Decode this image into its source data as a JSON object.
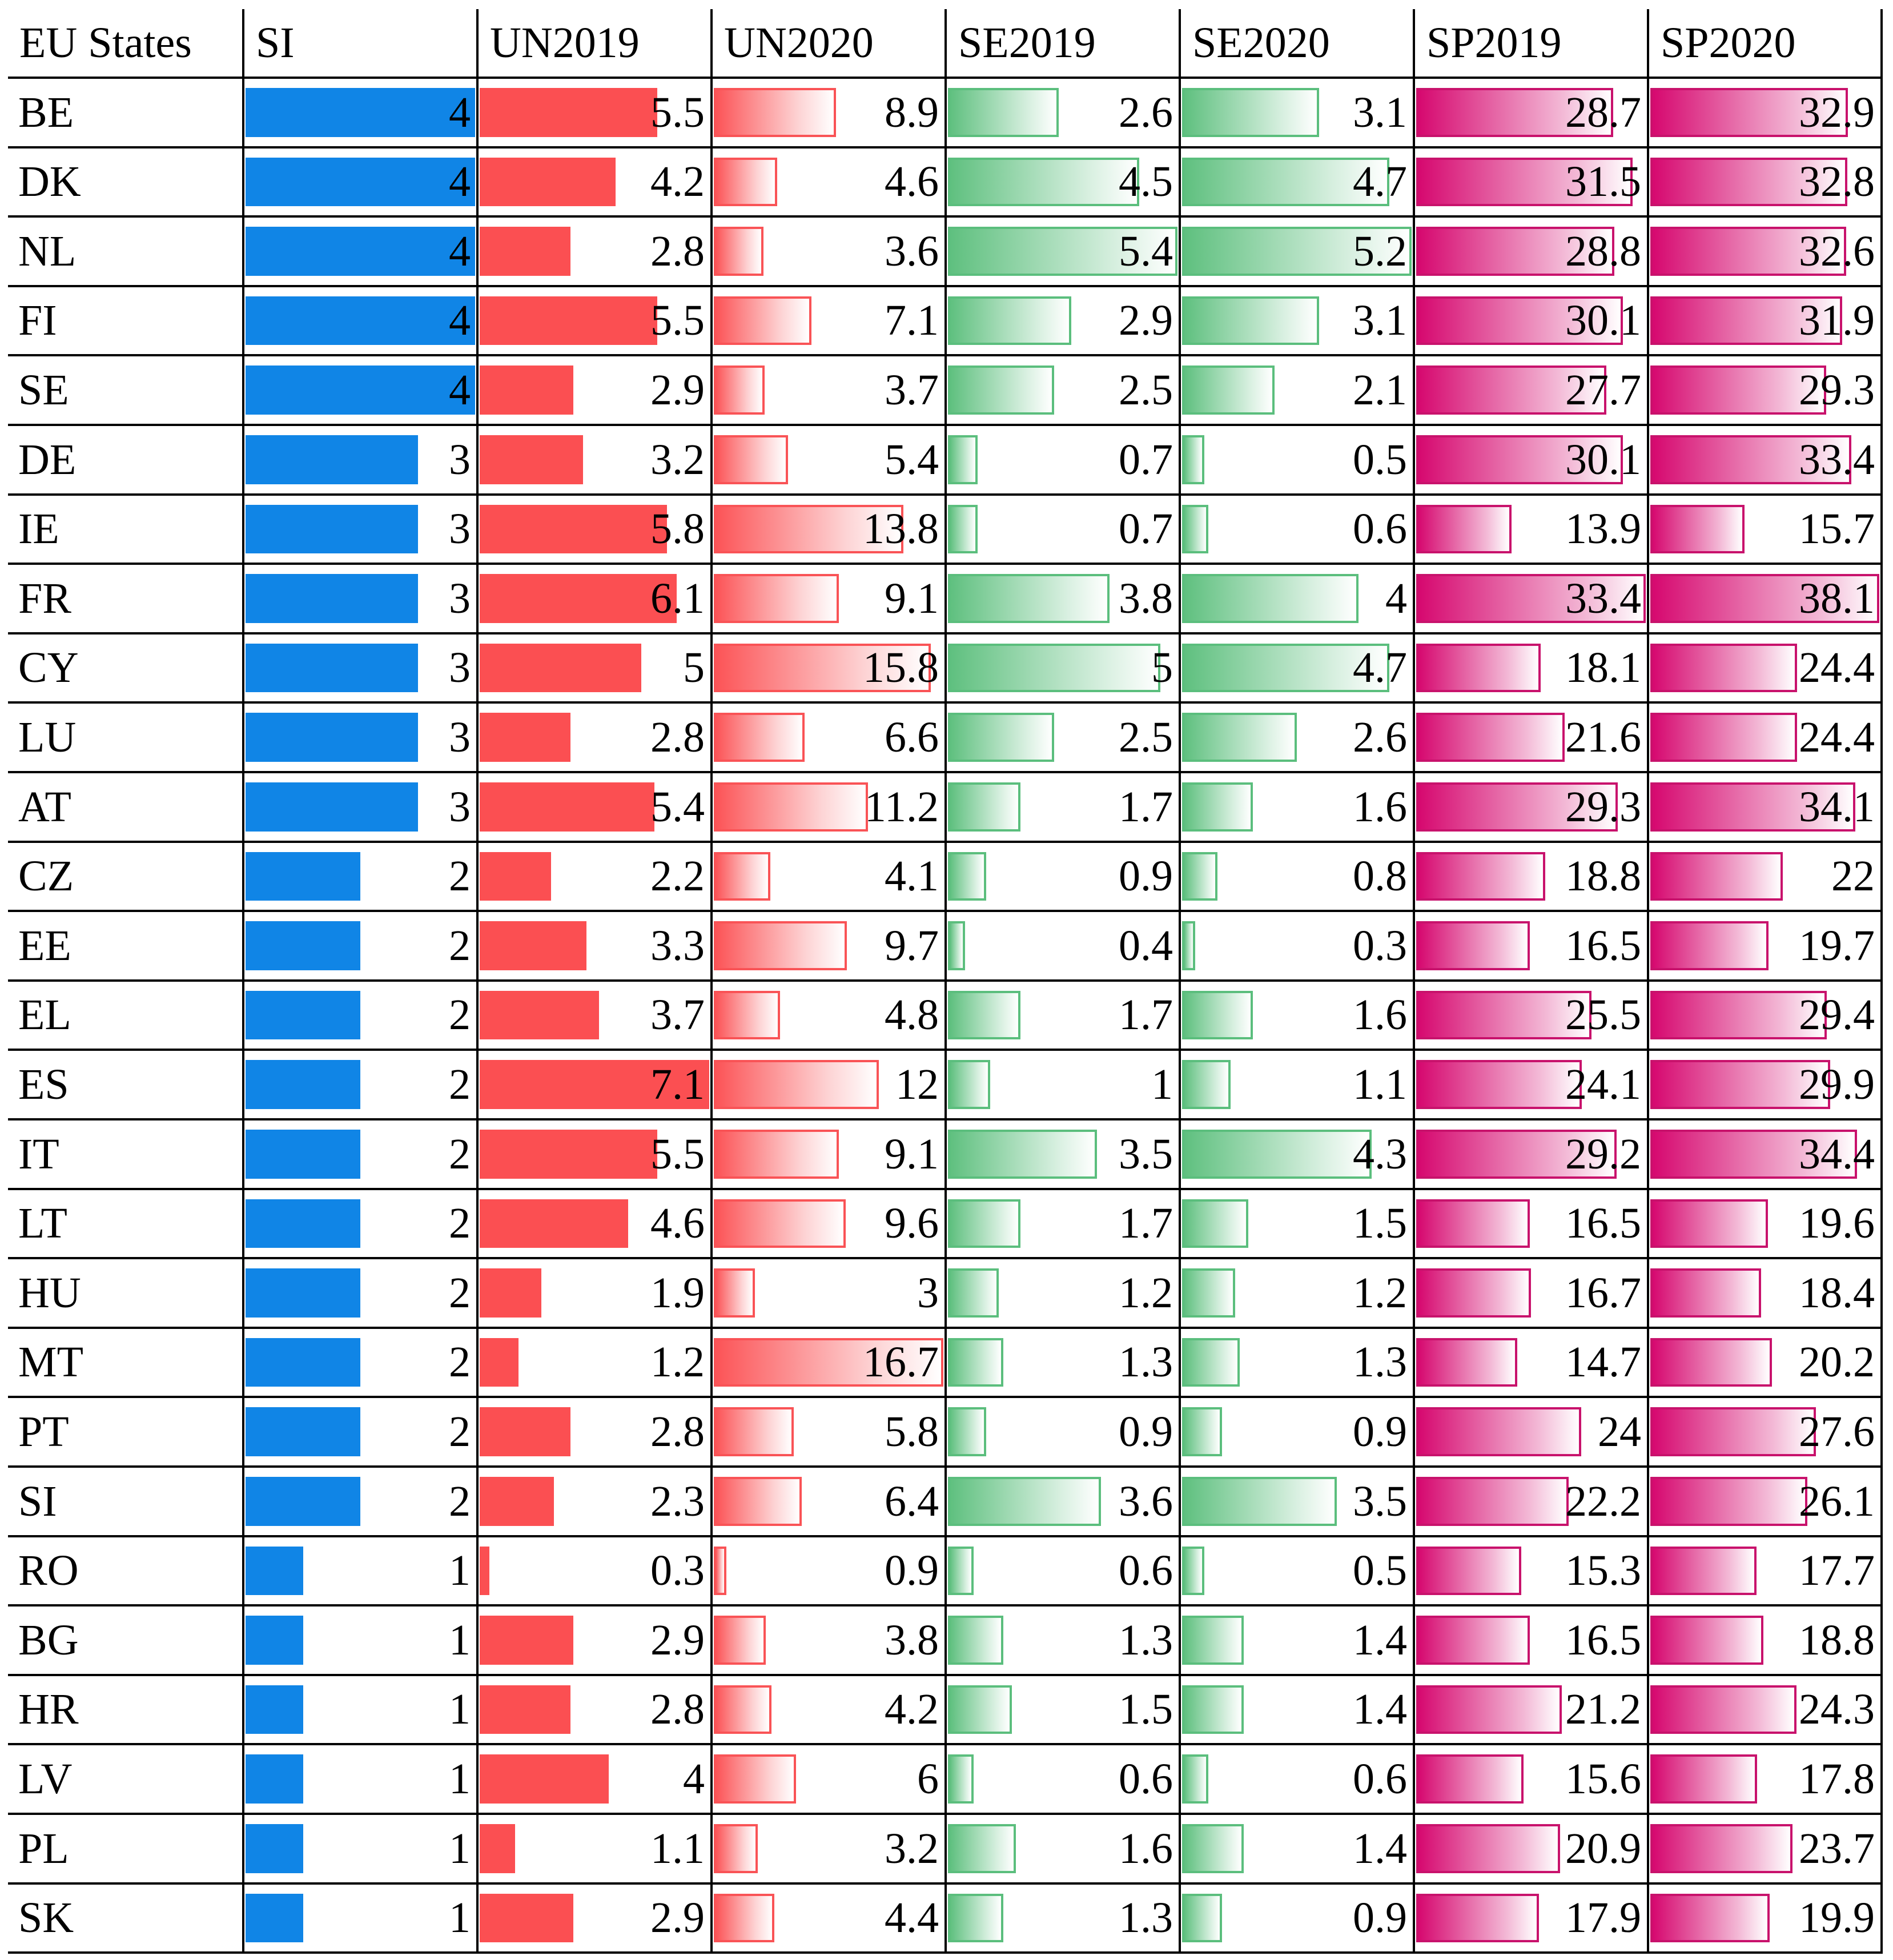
{
  "chart_data": {
    "type": "table",
    "columns": [
      "EU States",
      "SI",
      "UN2019",
      "UN2020",
      "SE2019",
      "SE2020",
      "SP2019",
      "SP2020"
    ],
    "rows": [
      [
        "BE",
        "4",
        "5.5",
        "8.9",
        "2.6",
        "3.1",
        "28.7",
        "32.9"
      ],
      [
        "DK",
        "4",
        "4.2",
        "4.6",
        "4.5",
        "4.7",
        "31.5",
        "32.8"
      ],
      [
        "NL",
        "4",
        "2.8",
        "3.6",
        "5.4",
        "5.2",
        "28.8",
        "32.6"
      ],
      [
        "FI",
        "4",
        "5.5",
        "7.1",
        "2.9",
        "3.1",
        "30.1",
        "31.9"
      ],
      [
        "SE",
        "4",
        "2.9",
        "3.7",
        "2.5",
        "2.1",
        "27.7",
        "29.3"
      ],
      [
        "DE",
        "3",
        "3.2",
        "5.4",
        "0.7",
        "0.5",
        "30.1",
        "33.4"
      ],
      [
        "IE",
        "3",
        "5.8",
        "13.8",
        "0.7",
        "0.6",
        "13.9",
        "15.7"
      ],
      [
        "FR",
        "3",
        "6.1",
        "9.1",
        "3.8",
        "4",
        "33.4",
        "38.1"
      ],
      [
        "CY",
        "3",
        "5",
        "15.8",
        "5",
        "4.7",
        "18.1",
        "24.4"
      ],
      [
        "LU",
        "3",
        "2.8",
        "6.6",
        "2.5",
        "2.6",
        "21.6",
        "24.4"
      ],
      [
        "AT",
        "3",
        "5.4",
        "11.2",
        "1.7",
        "1.6",
        "29.3",
        "34.1"
      ],
      [
        "CZ",
        "2",
        "2.2",
        "4.1",
        "0.9",
        "0.8",
        "18.8",
        "22"
      ],
      [
        "EE",
        "2",
        "3.3",
        "9.7",
        "0.4",
        "0.3",
        "16.5",
        "19.7"
      ],
      [
        "EL",
        "2",
        "3.7",
        "4.8",
        "1.7",
        "1.6",
        "25.5",
        "29.4"
      ],
      [
        "ES",
        "2",
        "7.1",
        "12",
        "1",
        "1.1",
        "24.1",
        "29.9"
      ],
      [
        "IT",
        "2",
        "5.5",
        "9.1",
        "3.5",
        "4.3",
        "29.2",
        "34.4"
      ],
      [
        "LT",
        "2",
        "4.6",
        "9.6",
        "1.7",
        "1.5",
        "16.5",
        "19.6"
      ],
      [
        "HU",
        "2",
        "1.9",
        "3",
        "1.2",
        "1.2",
        "16.7",
        "18.4"
      ],
      [
        "MT",
        "2",
        "1.2",
        "16.7",
        "1.3",
        "1.3",
        "14.7",
        "20.2"
      ],
      [
        "PT",
        "2",
        "2.8",
        "5.8",
        "0.9",
        "0.9",
        "24",
        "27.6"
      ],
      [
        "SI",
        "2",
        "2.3",
        "6.4",
        "3.6",
        "3.5",
        "22.2",
        "26.1"
      ],
      [
        "RO",
        "1",
        "0.3",
        "0.9",
        "0.6",
        "0.5",
        "15.3",
        "17.7"
      ],
      [
        "BG",
        "1",
        "2.9",
        "3.8",
        "1.3",
        "1.4",
        "16.5",
        "18.8"
      ],
      [
        "HR",
        "1",
        "2.8",
        "4.2",
        "1.5",
        "1.4",
        "21.2",
        "24.3"
      ],
      [
        "LV",
        "1",
        "4",
        "6",
        "0.6",
        "0.6",
        "15.6",
        "17.8"
      ],
      [
        "PL",
        "1",
        "1.1",
        "3.2",
        "1.6",
        "1.4",
        "20.9",
        "23.7"
      ],
      [
        "SK",
        "1",
        "2.9",
        "4.4",
        "1.3",
        "0.9",
        "17.9",
        "19.9"
      ]
    ],
    "bar_scale_max": [
      null,
      4,
      7.1,
      16.7,
      5.4,
      5.2,
      33.4,
      38.1
    ],
    "bar_style": [
      null,
      "si",
      "un19",
      "un20",
      "se19",
      "se20",
      "sp19",
      "sp20"
    ],
    "colors": {
      "si": "#1085e6",
      "un2019": "#fb4f52",
      "un2020": "#fc5457",
      "se": "#5fc07f",
      "sp": "#d6086f",
      "grid": "#000000"
    }
  }
}
